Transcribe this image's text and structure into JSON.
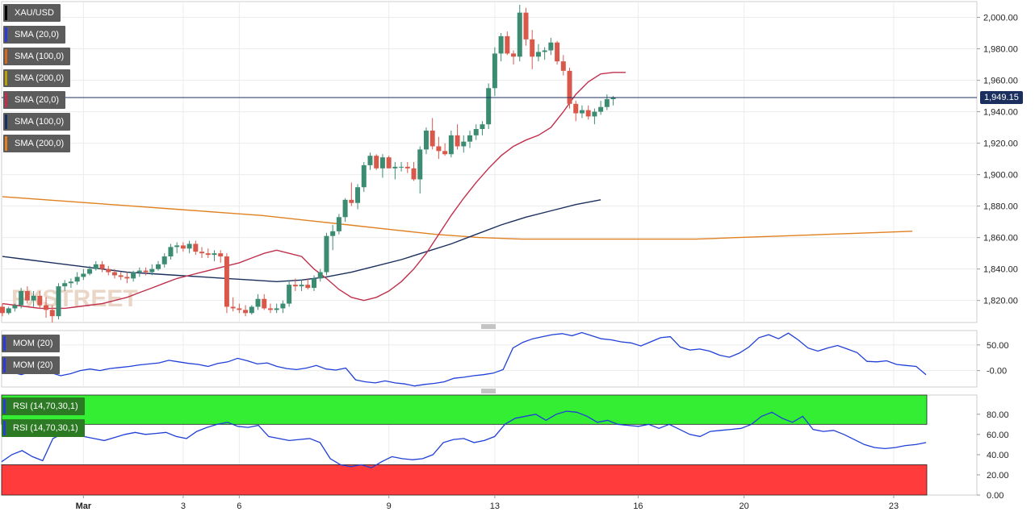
{
  "chart_data": {
    "symbol": "XAU/USD",
    "type": "candlestick",
    "last_price": "1,949.15",
    "legend": [
      {
        "label": "XAU/USD",
        "color": "#000000"
      },
      {
        "label": "SMA (20,0)",
        "color": "#2a3bd6"
      },
      {
        "label": "SMA (100,0)",
        "color": "#d2691e"
      },
      {
        "label": "SMA (200,0)",
        "color": "#b8a000"
      },
      {
        "label": "SMA (20,0)",
        "color": "#c0304a"
      },
      {
        "label": "SMA (100,0)",
        "color": "#1b2f5e"
      },
      {
        "label": "SMA (200,0)",
        "color": "#e08020"
      }
    ],
    "price_axis": {
      "ylim": [
        1806,
        2010
      ],
      "ticks": [
        "2,000.00",
        "1,980.00",
        "1,960.00",
        "1,940.00",
        "1,920.00",
        "1,900.00",
        "1,880.00",
        "1,860.00",
        "1,840.00",
        "1,820.00"
      ],
      "tick_values": [
        2000,
        1980,
        1960,
        1940,
        1920,
        1900,
        1880,
        1860,
        1840,
        1820
      ]
    },
    "date_labels": [
      {
        "label": "Mar",
        "bar": 13
      },
      {
        "label": "3",
        "bar": 29
      },
      {
        "label": "6",
        "bar": 38
      },
      {
        "label": "9",
        "bar": 62
      },
      {
        "label": "13",
        "bar": 79
      },
      {
        "label": "16",
        "bar": 102
      },
      {
        "label": "20",
        "bar": 119
      },
      {
        "label": "23",
        "bar": 143
      }
    ],
    "candles": [
      [
        1816,
        1818,
        1810,
        1812
      ],
      [
        1812,
        1816,
        1811,
        1815
      ],
      [
        1815,
        1818,
        1813,
        1817
      ],
      [
        1817,
        1828,
        1815,
        1826
      ],
      [
        1826,
        1829,
        1818,
        1820
      ],
      [
        1820,
        1826,
        1816,
        1823
      ],
      [
        1823,
        1826,
        1815,
        1817
      ],
      [
        1817,
        1822,
        1809,
        1814
      ],
      [
        1814,
        1817,
        1806,
        1810
      ],
      [
        1810,
        1831,
        1808,
        1829
      ],
      [
        1829,
        1833,
        1826,
        1831
      ],
      [
        1831,
        1834,
        1828,
        1832
      ],
      [
        1832,
        1838,
        1830,
        1835
      ],
      [
        1835,
        1840,
        1833,
        1837
      ],
      [
        1837,
        1842,
        1836,
        1840
      ],
      [
        1840,
        1845,
        1839,
        1843
      ],
      [
        1843,
        1845,
        1838,
        1840
      ],
      [
        1840,
        1842,
        1836,
        1838
      ],
      [
        1838,
        1840,
        1834,
        1836
      ],
      [
        1836,
        1838,
        1833,
        1835
      ],
      [
        1835,
        1838,
        1831,
        1834
      ],
      [
        1834,
        1839,
        1832,
        1838
      ],
      [
        1838,
        1841,
        1835,
        1839
      ],
      [
        1839,
        1841,
        1836,
        1838
      ],
      [
        1838,
        1843,
        1836,
        1840
      ],
      [
        1840,
        1845,
        1839,
        1843
      ],
      [
        1843,
        1850,
        1841,
        1848
      ],
      [
        1848,
        1856,
        1846,
        1854
      ],
      [
        1854,
        1857,
        1850,
        1855
      ],
      [
        1855,
        1857,
        1851,
        1853
      ],
      [
        1853,
        1858,
        1850,
        1856
      ],
      [
        1856,
        1858,
        1849,
        1851
      ],
      [
        1851,
        1854,
        1847,
        1850
      ],
      [
        1850,
        1853,
        1847,
        1849
      ],
      [
        1849,
        1852,
        1845,
        1850
      ],
      [
        1850,
        1852,
        1844,
        1848
      ],
      [
        1848,
        1850,
        1812,
        1816
      ],
      [
        1816,
        1822,
        1813,
        1815
      ],
      [
        1815,
        1818,
        1812,
        1814
      ],
      [
        1814,
        1817,
        1810,
        1812
      ],
      [
        1812,
        1817,
        1811,
        1816
      ],
      [
        1816,
        1824,
        1814,
        1821
      ],
      [
        1821,
        1824,
        1814,
        1815
      ],
      [
        1815,
        1818,
        1812,
        1814
      ],
      [
        1814,
        1818,
        1812,
        1815
      ],
      [
        1815,
        1820,
        1812,
        1818
      ],
      [
        1818,
        1833,
        1816,
        1830
      ],
      [
        1830,
        1834,
        1826,
        1829
      ],
      [
        1829,
        1833,
        1826,
        1830
      ],
      [
        1830,
        1834,
        1827,
        1828
      ],
      [
        1828,
        1836,
        1826,
        1834
      ],
      [
        1834,
        1840,
        1832,
        1838
      ],
      [
        1838,
        1863,
        1836,
        1861
      ],
      [
        1861,
        1868,
        1852,
        1864
      ],
      [
        1864,
        1875,
        1862,
        1873
      ],
      [
        1873,
        1885,
        1870,
        1884
      ],
      [
        1884,
        1895,
        1880,
        1882
      ],
      [
        1882,
        1894,
        1878,
        1892
      ],
      [
        1892,
        1908,
        1889,
        1906
      ],
      [
        1906,
        1914,
        1903,
        1912
      ],
      [
        1912,
        1913,
        1903,
        1904
      ],
      [
        1904,
        1913,
        1898,
        1911
      ],
      [
        1911,
        1912,
        1904,
        1904
      ],
      [
        1904,
        1908,
        1897,
        1905
      ],
      [
        1905,
        1908,
        1902,
        1905
      ],
      [
        1905,
        1908,
        1901,
        1904
      ],
      [
        1904,
        1908,
        1896,
        1897
      ],
      [
        1897,
        1918,
        1888,
        1916
      ],
      [
        1916,
        1930,
        1913,
        1928
      ],
      [
        1928,
        1936,
        1916,
        1918
      ],
      [
        1918,
        1924,
        1910,
        1915
      ],
      [
        1915,
        1920,
        1912,
        1913
      ],
      [
        1913,
        1928,
        1911,
        1925
      ],
      [
        1925,
        1932,
        1916,
        1918
      ],
      [
        1918,
        1925,
        1914,
        1921
      ],
      [
        1921,
        1928,
        1917,
        1925
      ],
      [
        1925,
        1932,
        1922,
        1929
      ],
      [
        1929,
        1934,
        1925,
        1932
      ],
      [
        1932,
        1958,
        1929,
        1955
      ],
      [
        1955,
        1981,
        1950,
        1977
      ],
      [
        1977,
        1990,
        1972,
        1988
      ],
      [
        1988,
        1991,
        1976,
        1977
      ],
      [
        1977,
        1979,
        1970,
        1975
      ],
      [
        1975,
        2008,
        1972,
        2003
      ],
      [
        2003,
        2006,
        1982,
        1986
      ],
      [
        1986,
        1992,
        1967,
        1975
      ],
      [
        1975,
        1983,
        1972,
        1978
      ],
      [
        1978,
        1981,
        1973,
        1979
      ],
      [
        1979,
        1987,
        1976,
        1984
      ],
      [
        1984,
        1985,
        1970,
        1972
      ],
      [
        1972,
        1976,
        1963,
        1966
      ],
      [
        1966,
        1968,
        1942,
        1945
      ],
      [
        1945,
        1947,
        1934,
        1939
      ],
      [
        1939,
        1944,
        1936,
        1941
      ],
      [
        1941,
        1944,
        1935,
        1937
      ],
      [
        1937,
        1942,
        1932,
        1940
      ],
      [
        1940,
        1947,
        1938,
        1943
      ],
      [
        1943,
        1951,
        1941,
        1948
      ],
      [
        1948,
        1950,
        1944,
        1949
      ]
    ],
    "sma20": [
      1818,
      1817,
      1816,
      1815,
      1815,
      1815,
      1816,
      1817,
      1818,
      1820,
      1822,
      1825,
      1828,
      1831,
      1834,
      1836,
      1838,
      1840,
      1842,
      1844,
      1847,
      1850,
      1852,
      1850,
      1848,
      1840,
      1834,
      1827,
      1822,
      1820,
      1822,
      1826,
      1832,
      1840,
      1850,
      1862,
      1874,
      1885,
      1895,
      1904,
      1912,
      1918,
      1922,
      1925,
      1930,
      1940,
      1951,
      1959,
      1964,
      1965,
      1965
    ],
    "sma20_start": 0,
    "sma100": [
      1848,
      1846,
      1844,
      1842,
      1840,
      1838,
      1837,
      1836,
      1835,
      1834,
      1833,
      1832,
      1833,
      1835,
      1838,
      1842,
      1846,
      1851,
      1856,
      1862,
      1868,
      1873,
      1877,
      1881,
      1884
    ],
    "sma200": [
      1886,
      1884,
      1882,
      1880,
      1878,
      1876,
      1874,
      1871,
      1868,
      1865,
      1862,
      1860,
      1859,
      1859,
      1859,
      1859,
      1859,
      1860,
      1861,
      1862,
      1863,
      1864
    ],
    "mom_axis": {
      "ylim": [
        -32,
        78
      ],
      "ticks": [
        "50.00",
        "-0.00"
      ],
      "tick_values": [
        50,
        0
      ]
    },
    "mom_legend": [
      "MOM (20)",
      "MOM (20)"
    ],
    "mom": [
      -5,
      -3,
      -8,
      -2,
      -6,
      -4,
      -10,
      -6,
      0,
      3,
      0,
      4,
      6,
      8,
      11,
      13,
      15,
      20,
      17,
      14,
      12,
      8,
      14,
      17,
      24,
      19,
      13,
      15,
      8,
      4,
      2,
      5,
      10,
      3,
      1,
      5,
      -18,
      -22,
      -24,
      -20,
      -24,
      -26,
      -30,
      -27,
      -25,
      -22,
      -15,
      -13,
      -10,
      -8,
      -5,
      2,
      44,
      55,
      62,
      66,
      70,
      72,
      68,
      74,
      68,
      62,
      60,
      56,
      54,
      48,
      56,
      64,
      66,
      46,
      40,
      42,
      38,
      30,
      26,
      34,
      46,
      64,
      70,
      62,
      73,
      60,
      44,
      38,
      44,
      49,
      42,
      35,
      18,
      17,
      19,
      12,
      10,
      8,
      -8
    ],
    "rsi_axis": {
      "ylim": [
        0,
        99
      ],
      "ticks": [
        "80.00",
        "60.00",
        "40.00",
        "20.00",
        "0.00"
      ],
      "tick_values": [
        80,
        60,
        40,
        20,
        0
      ],
      "overbought": 70,
      "oversold": 30
    },
    "rsi_legend": [
      "RSI (14,70,30,1)",
      "RSI (14,70,30,1)"
    ],
    "rsi": [
      33,
      40,
      44,
      38,
      34,
      56,
      61,
      62,
      58,
      56,
      54,
      57,
      60,
      62,
      60,
      61,
      62,
      58,
      56,
      63,
      67,
      70,
      72,
      68,
      67,
      69,
      58,
      56,
      54,
      55,
      56,
      52,
      36,
      30,
      28,
      30,
      27,
      33,
      38,
      36,
      35,
      36,
      40,
      52,
      55,
      56,
      52,
      54,
      58,
      70,
      76,
      78,
      80,
      74,
      80,
      83,
      82,
      78,
      72,
      74,
      70,
      69,
      68,
      70,
      66,
      70,
      65,
      60,
      58,
      63,
      64,
      65,
      66,
      70,
      78,
      82,
      76,
      72,
      78,
      65,
      63,
      64,
      60,
      55,
      50,
      47,
      46,
      47,
      49,
      50,
      52
    ]
  }
}
